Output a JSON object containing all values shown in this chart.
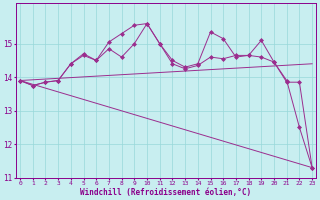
{
  "xlabel": "Windchill (Refroidissement éolien,°C)",
  "x": [
    0,
    1,
    2,
    3,
    4,
    5,
    6,
    7,
    8,
    9,
    10,
    11,
    12,
    13,
    14,
    15,
    16,
    17,
    18,
    19,
    20,
    21,
    22,
    23
  ],
  "line1": [
    13.9,
    13.75,
    13.85,
    13.9,
    14.4,
    14.7,
    14.5,
    15.05,
    15.3,
    15.55,
    15.6,
    15.0,
    14.5,
    14.3,
    14.4,
    15.35,
    15.15,
    14.6,
    14.65,
    15.1,
    14.45,
    13.9,
    12.5,
    11.3
  ],
  "line2": [
    13.9,
    13.75,
    13.85,
    13.9,
    14.4,
    14.65,
    14.5,
    14.85,
    14.6,
    15.0,
    15.6,
    15.0,
    14.4,
    14.25,
    14.35,
    14.6,
    14.55,
    14.65,
    14.65,
    14.6,
    14.45,
    13.85,
    13.85,
    11.3
  ],
  "line3_x": [
    0,
    23
  ],
  "line3_y": [
    13.9,
    14.4
  ],
  "line4_x": [
    0,
    23
  ],
  "line4_y": [
    13.9,
    11.3
  ],
  "line_color": "#9b2d8e",
  "bg_color": "#c8eef0",
  "grid_color": "#98d8da",
  "axis_color": "#8b008b",
  "ylim": [
    11.0,
    16.2
  ],
  "xlim": [
    -0.3,
    23.3
  ],
  "yticks": [
    11,
    12,
    13,
    14,
    15
  ],
  "xticks": [
    0,
    1,
    2,
    3,
    4,
    5,
    6,
    7,
    8,
    9,
    10,
    11,
    12,
    13,
    14,
    15,
    16,
    17,
    18,
    19,
    20,
    21,
    22,
    23
  ]
}
